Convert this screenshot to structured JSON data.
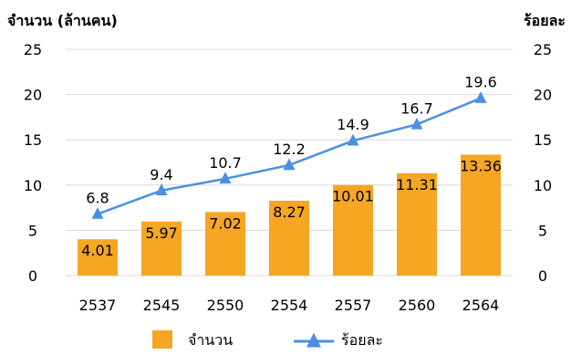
{
  "chart_data": {
    "type": "bar",
    "categories": [
      "2537",
      "2545",
      "2550",
      "2554",
      "2557",
      "2560",
      "2564"
    ],
    "series": [
      {
        "name": "จำนวน",
        "type": "bar",
        "axis": "left",
        "color": "#F5A623",
        "values": [
          4.01,
          5.97,
          7.02,
          8.27,
          10.01,
          11.31,
          13.36
        ],
        "labels": [
          "4.01",
          "5.97",
          "7.02",
          "8.27",
          "10.01",
          "11.31",
          "13.36"
        ]
      },
      {
        "name": "ร้อยละ",
        "type": "line",
        "axis": "right",
        "color": "#4A90E2",
        "marker": "triangle",
        "values": [
          6.8,
          9.4,
          10.7,
          12.2,
          14.9,
          16.7,
          19.6
        ],
        "labels": [
          "6.8",
          "9.4",
          "10.7",
          "12.2",
          "14.9",
          "16.7",
          "19.6"
        ]
      }
    ],
    "ylabel_left": "จำนวน (ล้านคน)",
    "ylabel_right": "ร้อยละ",
    "ylim_left": [
      0,
      25
    ],
    "ylim_right": [
      0,
      25
    ],
    "yticks_left": [
      "0",
      "5",
      "10",
      "15",
      "20",
      "25"
    ],
    "yticks_right": [
      "0",
      "5",
      "10",
      "15",
      "20",
      "25"
    ],
    "grid": true,
    "legend_position": "bottom"
  }
}
